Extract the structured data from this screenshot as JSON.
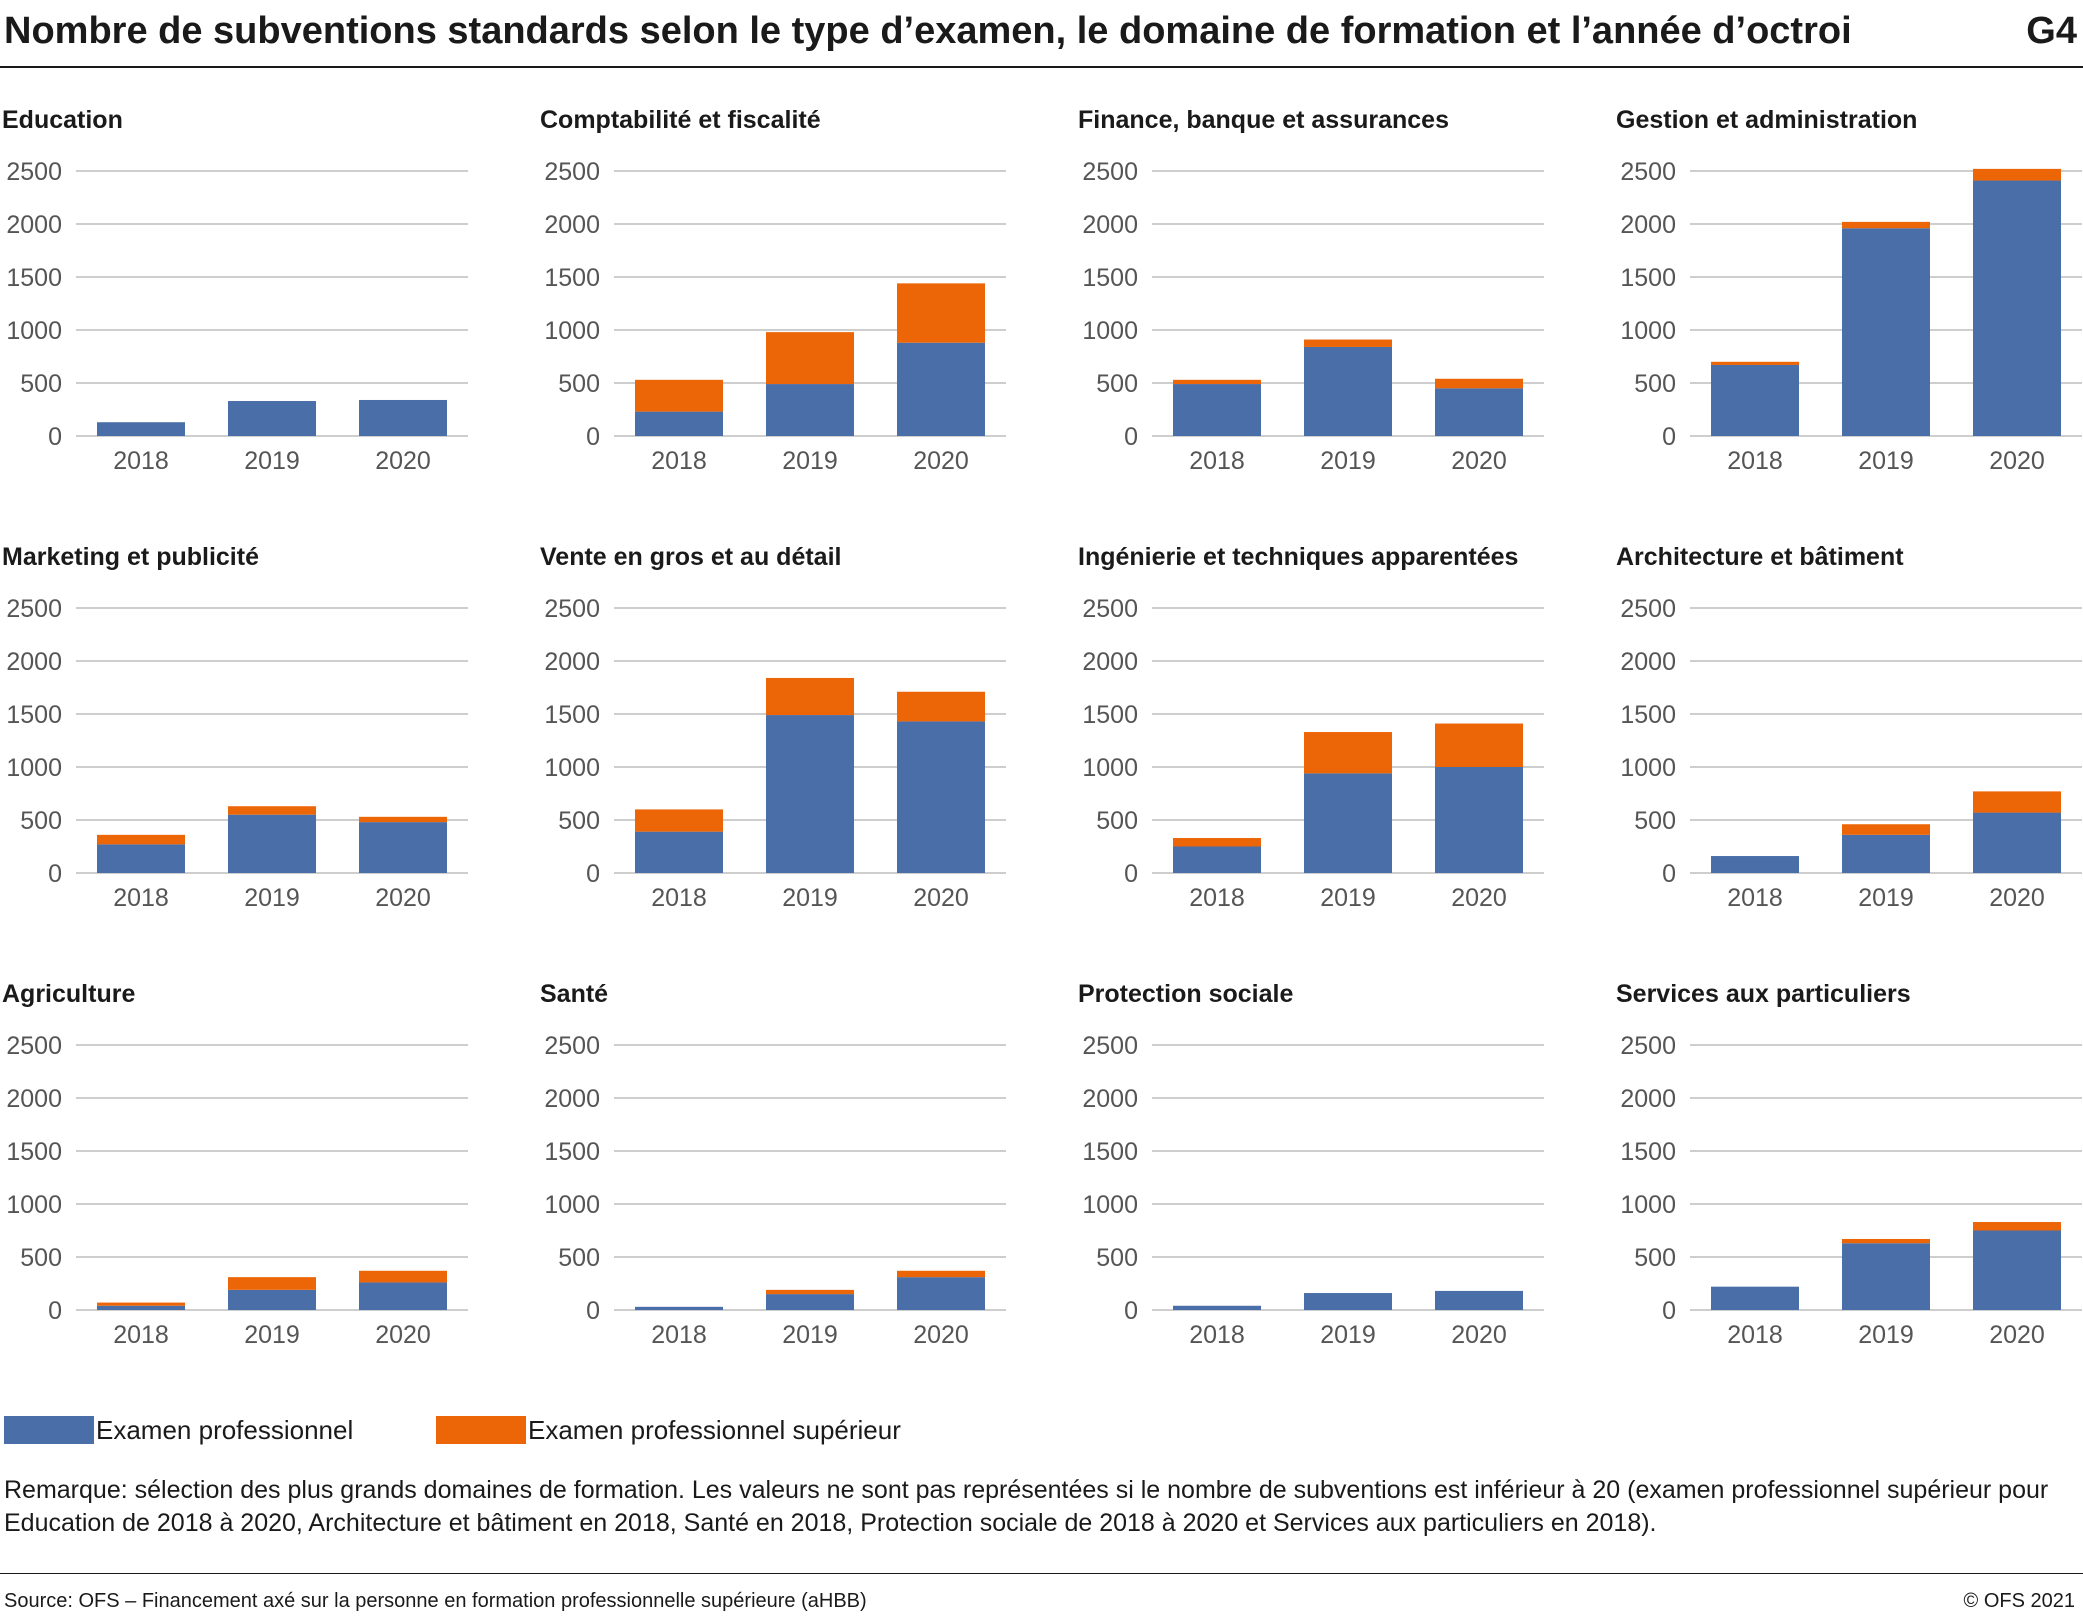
{
  "header": {
    "title": "Nombre de subventions standards selon le type d’examen, le domaine de formation et l’année d’octroi",
    "badge": "G4"
  },
  "colors": {
    "series_1": "#4a6ea7",
    "series_2": "#ec6608",
    "grid": "#bdbdbd",
    "tick_text": "#555555"
  },
  "chart_data": [
    {
      "type": "bar",
      "stacked": true,
      "title": "Education",
      "categories": [
        "2018",
        "2019",
        "2020"
      ],
      "ylim": [
        0,
        2500
      ],
      "yticks": [
        0,
        500,
        1000,
        1500,
        2000,
        2500
      ],
      "series": [
        {
          "name": "Examen professionnel",
          "values": [
            130,
            330,
            340
          ]
        },
        {
          "name": "Examen professionnel supérieur",
          "values": [
            0,
            0,
            0
          ]
        }
      ]
    },
    {
      "type": "bar",
      "stacked": true,
      "title": "Comptabilité et fiscalité",
      "categories": [
        "2018",
        "2019",
        "2020"
      ],
      "ylim": [
        0,
        2500
      ],
      "yticks": [
        0,
        500,
        1000,
        1500,
        2000,
        2500
      ],
      "series": [
        {
          "name": "Examen professionnel",
          "values": [
            230,
            490,
            880
          ]
        },
        {
          "name": "Examen professionnel supérieur",
          "values": [
            300,
            490,
            560
          ]
        }
      ]
    },
    {
      "type": "bar",
      "stacked": true,
      "title": "Finance, banque et assurances",
      "categories": [
        "2018",
        "2019",
        "2020"
      ],
      "ylim": [
        0,
        2500
      ],
      "yticks": [
        0,
        500,
        1000,
        1500,
        2000,
        2500
      ],
      "series": [
        {
          "name": "Examen professionnel",
          "values": [
            490,
            840,
            450
          ]
        },
        {
          "name": "Examen professionnel supérieur",
          "values": [
            40,
            70,
            90
          ]
        }
      ]
    },
    {
      "type": "bar",
      "stacked": true,
      "title": "Gestion et administration",
      "categories": [
        "2018",
        "2019",
        "2020"
      ],
      "ylim": [
        0,
        2500
      ],
      "yticks": [
        0,
        500,
        1000,
        1500,
        2000,
        2500
      ],
      "series": [
        {
          "name": "Examen professionnel",
          "values": [
            670,
            1960,
            2410
          ]
        },
        {
          "name": "Examen professionnel supérieur",
          "values": [
            30,
            60,
            110
          ]
        }
      ]
    },
    {
      "type": "bar",
      "stacked": true,
      "title": "Marketing et publicité",
      "categories": [
        "2018",
        "2019",
        "2020"
      ],
      "ylim": [
        0,
        2500
      ],
      "yticks": [
        0,
        500,
        1000,
        1500,
        2000,
        2500
      ],
      "series": [
        {
          "name": "Examen professionnel",
          "values": [
            270,
            550,
            480
          ]
        },
        {
          "name": "Examen professionnel supérieur",
          "values": [
            90,
            80,
            50
          ]
        }
      ]
    },
    {
      "type": "bar",
      "stacked": true,
      "title": "Vente en gros et au détail",
      "categories": [
        "2018",
        "2019",
        "2020"
      ],
      "ylim": [
        0,
        2500
      ],
      "yticks": [
        0,
        500,
        1000,
        1500,
        2000,
        2500
      ],
      "series": [
        {
          "name": "Examen professionnel",
          "values": [
            390,
            1490,
            1430
          ]
        },
        {
          "name": "Examen professionnel supérieur",
          "values": [
            210,
            350,
            280
          ]
        }
      ]
    },
    {
      "type": "bar",
      "stacked": true,
      "title": "Ingénierie et techniques apparentées",
      "categories": [
        "2018",
        "2019",
        "2020"
      ],
      "ylim": [
        0,
        2500
      ],
      "yticks": [
        0,
        500,
        1000,
        1500,
        2000,
        2500
      ],
      "series": [
        {
          "name": "Examen professionnel",
          "values": [
            250,
            940,
            1000
          ]
        },
        {
          "name": "Examen professionnel supérieur",
          "values": [
            80,
            390,
            410
          ]
        }
      ]
    },
    {
      "type": "bar",
      "stacked": true,
      "title": "Architecture et bâtiment",
      "categories": [
        "2018",
        "2019",
        "2020"
      ],
      "ylim": [
        0,
        2500
      ],
      "yticks": [
        0,
        500,
        1000,
        1500,
        2000,
        2500
      ],
      "series": [
        {
          "name": "Examen professionnel",
          "values": [
            160,
            360,
            570
          ]
        },
        {
          "name": "Examen professionnel supérieur",
          "values": [
            0,
            100,
            200
          ]
        }
      ]
    },
    {
      "type": "bar",
      "stacked": true,
      "title": "Agriculture",
      "categories": [
        "2018",
        "2019",
        "2020"
      ],
      "ylim": [
        0,
        2500
      ],
      "yticks": [
        0,
        500,
        1000,
        1500,
        2000,
        2500
      ],
      "series": [
        {
          "name": "Examen professionnel",
          "values": [
            40,
            190,
            260
          ]
        },
        {
          "name": "Examen professionnel supérieur",
          "values": [
            30,
            120,
            110
          ]
        }
      ]
    },
    {
      "type": "bar",
      "stacked": true,
      "title": "Santé",
      "categories": [
        "2018",
        "2019",
        "2020"
      ],
      "ylim": [
        0,
        2500
      ],
      "yticks": [
        0,
        500,
        1000,
        1500,
        2000,
        2500
      ],
      "series": [
        {
          "name": "Examen professionnel",
          "values": [
            30,
            150,
            310
          ]
        },
        {
          "name": "Examen professionnel supérieur",
          "values": [
            0,
            40,
            60
          ]
        }
      ]
    },
    {
      "type": "bar",
      "stacked": true,
      "title": "Protection sociale",
      "categories": [
        "2018",
        "2019",
        "2020"
      ],
      "ylim": [
        0,
        2500
      ],
      "yticks": [
        0,
        500,
        1000,
        1500,
        2000,
        2500
      ],
      "series": [
        {
          "name": "Examen professionnel",
          "values": [
            40,
            160,
            180
          ]
        },
        {
          "name": "Examen professionnel supérieur",
          "values": [
            0,
            0,
            0
          ]
        }
      ]
    },
    {
      "type": "bar",
      "stacked": true,
      "title": "Services aux particuliers",
      "categories": [
        "2018",
        "2019",
        "2020"
      ],
      "ylim": [
        0,
        2500
      ],
      "yticks": [
        0,
        500,
        1000,
        1500,
        2000,
        2500
      ],
      "series": [
        {
          "name": "Examen professionnel",
          "values": [
            220,
            630,
            750
          ]
        },
        {
          "name": "Examen professionnel supérieur",
          "values": [
            0,
            40,
            80
          ]
        }
      ]
    }
  ],
  "legend": [
    {
      "label": "Examen professionnel",
      "color": "#4a6ea7"
    },
    {
      "label": "Examen professionnel supérieur",
      "color": "#ec6608"
    }
  ],
  "footer": {
    "note": "Remarque: sélection des plus grands domaines de formation. Les valeurs ne sont pas représentées si le nombre de subventions est inférieur à 20 (examen professionnel supérieur pour Education de 2018 à 2020, Architecture et bâtiment en 2018, Santé en 2018, Protection sociale de 2018 à 2020 et Services aux particuliers en 2018).",
    "source": "Source: OFS – Financement axé sur la personne en formation professionnelle supérieure (aHBB)",
    "copyright": "© OFS 2021"
  }
}
